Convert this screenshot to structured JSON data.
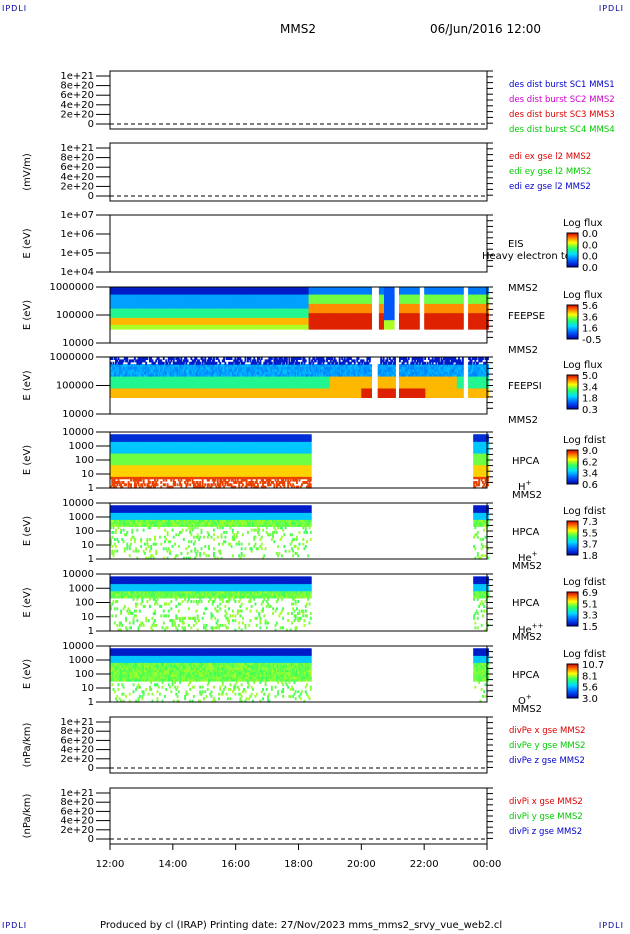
{
  "corners": {
    "tl": "IPDLI",
    "tr": "IPDLI",
    "bl": "IPDLI",
    "br": "IPDLI"
  },
  "header": {
    "spacecraft": "MMS2",
    "datetime": "06/Jun/2016 12:00"
  },
  "footer": {
    "text": "Produced by cl (IRAP)   Printing date: 27/Nov/2023   mms_mms2_srvy_vue_web2.cl"
  },
  "colors": {
    "red": "#dd0000",
    "green": "#00cc00",
    "blue": "#0000cc",
    "magenta": "#cc00cc"
  },
  "chart_data": [
    {
      "type": "line",
      "id": "des",
      "ylabel": "",
      "yticks": [
        "1e+21",
        "8e+20",
        "6e+20",
        "4e+20",
        "2e+20",
        "0"
      ],
      "series": [
        {
          "name": "des dist burst SC1 MMS1",
          "color": "blue"
        },
        {
          "name": "des dist burst SC2 MMS2",
          "color": "magenta"
        },
        {
          "name": "des dist burst SC3 MMS3",
          "color": "red"
        },
        {
          "name": "des dist burst SC4 MMS4",
          "color": "green"
        }
      ]
    },
    {
      "type": "line",
      "id": "edi",
      "ylabel": "(mV/m)",
      "yticks": [
        "1e+21",
        "8e+20",
        "6e+20",
        "4e+20",
        "2e+20",
        "0"
      ],
      "series": [
        {
          "name": "edi ex gse l2 MMS2",
          "color": "red"
        },
        {
          "name": "edi ey gse l2 MMS2",
          "color": "green"
        },
        {
          "name": "edi ez gse l2 MMS2",
          "color": "blue"
        }
      ]
    },
    {
      "type": "heatmap",
      "id": "eis",
      "ylabel": "E (eV)",
      "yticks": [
        "1e+07",
        "1e+06",
        "1e+05",
        "1e+04"
      ],
      "labels": [
        "EIS",
        "Heavy electron to",
        "MMS2"
      ],
      "cbar_title": "Log flux",
      "cbar_ticks": [
        "0.0",
        "0.0",
        "0.0",
        "0.0"
      ]
    },
    {
      "type": "heatmap",
      "id": "feepse",
      "ylabel": "E (eV)",
      "yticks": [
        "1000000",
        "100000",
        "10000"
      ],
      "labels": [
        "FEEPSE",
        "MMS2"
      ],
      "cbar_title": "Log flux",
      "cbar_ticks": [
        "5.6",
        "3.6",
        "1.6",
        "-0.5"
      ]
    },
    {
      "type": "heatmap",
      "id": "feepsi",
      "ylabel": "E (eV)",
      "yticks": [
        "1000000",
        "100000",
        "10000"
      ],
      "labels": [
        "FEEPSI",
        "MMS2"
      ],
      "cbar_title": "Log flux",
      "cbar_ticks": [
        "5.0",
        "3.4",
        "1.8",
        "0.3"
      ]
    },
    {
      "type": "heatmap",
      "id": "hpca_h",
      "ylabel": "E (eV)",
      "yticks": [
        "10000",
        "1000",
        "100",
        "10",
        "1"
      ],
      "labels": [
        "HPCA",
        "MMS2"
      ],
      "species": "H",
      "sup": "+",
      "cbar_title": "Log fdist",
      "cbar_ticks": [
        "9.0",
        "6.2",
        "3.4",
        "0.6"
      ]
    },
    {
      "type": "heatmap",
      "id": "hpca_he",
      "ylabel": "E (eV)",
      "yticks": [
        "10000",
        "1000",
        "100",
        "10",
        "1"
      ],
      "labels": [
        "HPCA",
        "MMS2"
      ],
      "species": "He",
      "sup": "+",
      "cbar_title": "Log fdist",
      "cbar_ticks": [
        "7.3",
        "5.5",
        "3.7",
        "1.8"
      ]
    },
    {
      "type": "heatmap",
      "id": "hpca_he2",
      "ylabel": "E (eV)",
      "yticks": [
        "10000",
        "1000",
        "100",
        "10",
        "1"
      ],
      "labels": [
        "HPCA",
        "MMS2"
      ],
      "species": "He",
      "sup": "++",
      "cbar_title": "Log fdist",
      "cbar_ticks": [
        "6.9",
        "5.1",
        "3.3",
        "1.5"
      ]
    },
    {
      "type": "heatmap",
      "id": "hpca_o",
      "ylabel": "E (eV)",
      "yticks": [
        "10000",
        "1000",
        "100",
        "10",
        "1"
      ],
      "labels": [
        "HPCA",
        "MMS2"
      ],
      "species": "O",
      "sup": "+",
      "cbar_title": "Log fdist",
      "cbar_ticks": [
        "10.7",
        "8.1",
        "5.6",
        "3.0"
      ]
    },
    {
      "type": "line",
      "id": "divpe",
      "ylabel": "(nPa/km)",
      "yticks": [
        "1e+21",
        "8e+20",
        "6e+20",
        "4e+20",
        "2e+20",
        "0"
      ],
      "series": [
        {
          "name": "divPe x gse MMS2",
          "color": "red"
        },
        {
          "name": "divPe y gse MMS2",
          "color": "green"
        },
        {
          "name": "divPe z gse MMS2",
          "color": "blue"
        }
      ]
    },
    {
      "type": "line",
      "id": "divpi",
      "ylabel": "(nPa/km)",
      "yticks": [
        "1e+21",
        "8e+20",
        "6e+20",
        "4e+20",
        "2e+20",
        "0"
      ],
      "series": [
        {
          "name": "divPi x gse MMS2",
          "color": "red"
        },
        {
          "name": "divPi y gse MMS2",
          "color": "green"
        },
        {
          "name": "divPi z gse MMS2",
          "color": "blue"
        }
      ]
    }
  ],
  "xaxis": {
    "ticks": [
      "12:00",
      "14:00",
      "16:00",
      "18:00",
      "20:00",
      "22:00",
      "00:00"
    ]
  }
}
